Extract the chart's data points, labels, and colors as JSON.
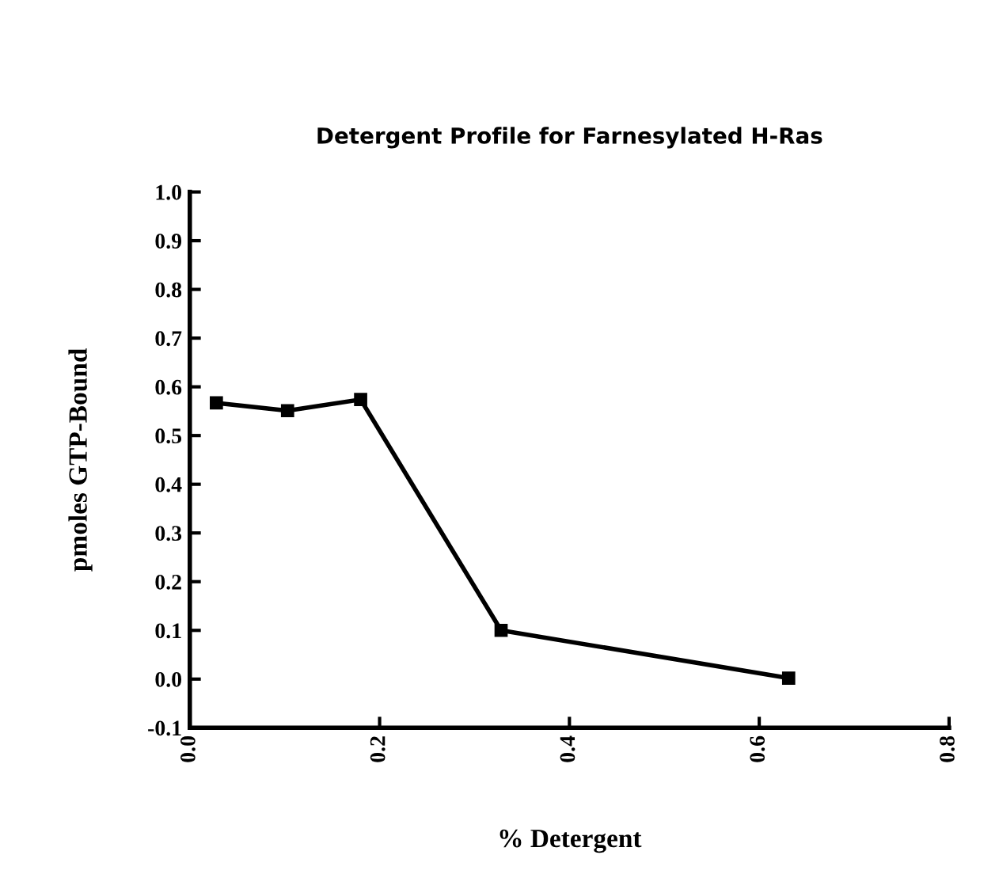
{
  "chart_data": {
    "type": "line",
    "title": "Detergent Profile for Farnesylated H-Ras",
    "xlabel": "% Detergent",
    "ylabel": "pmoles GTP-Bound",
    "x": [
      0.028,
      0.103,
      0.18,
      0.328,
      0.631
    ],
    "series": [
      {
        "color": "#000000",
        "values": [
          0.567,
          0.551,
          0.574,
          0.1,
          0.002
        ]
      }
    ],
    "xlim": [
      0.0,
      0.8
    ],
    "xticks": [
      {
        "value": 0.0,
        "label": "0.0"
      },
      0.2,
      0.4,
      0.6,
      0.8
    ],
    "ylim": [
      -0.1,
      1.0
    ],
    "yticks": [
      -0.1,
      {
        "value": 0.0,
        "label": "0.0"
      },
      0.1,
      0.2,
      0.3,
      0.4,
      0.5,
      0.6,
      0.7,
      0.8,
      0.9,
      {
        "value": 1.0,
        "label": "1.0"
      }
    ],
    "grid": false,
    "legend": false,
    "marker": "square",
    "line_style": "solid"
  }
}
